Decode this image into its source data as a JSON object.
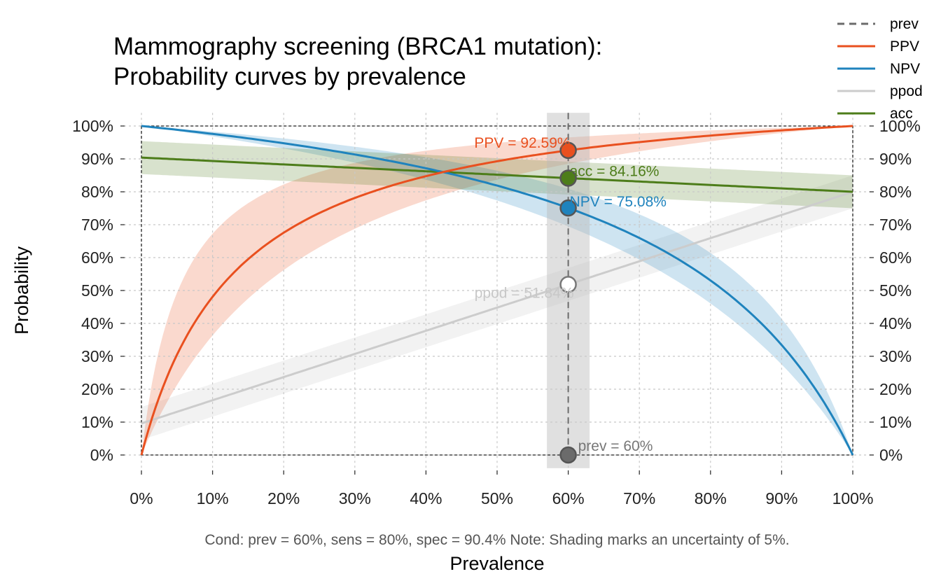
{
  "chart_data": {
    "type": "line",
    "title_line1": "Mammography screening (BRCA1 mutation):",
    "title_line2": "Probability curves by prevalence",
    "xlabel": "Prevalence",
    "ylabel": "Probability",
    "x_ticks": [
      "0%",
      "10%",
      "20%",
      "30%",
      "40%",
      "50%",
      "60%",
      "70%",
      "80%",
      "90%",
      "100%"
    ],
    "y_ticks": [
      "0%",
      "10%",
      "20%",
      "30%",
      "40%",
      "50%",
      "60%",
      "70%",
      "80%",
      "90%",
      "100%"
    ],
    "xlim": [
      0,
      100
    ],
    "ylim": [
      0,
      100
    ],
    "grid": true,
    "legend_position": "top-right",
    "note": "Cond:  prev = 60%, sens = 80%, spec = 90.4% Note:  Shading marks an uncertainty of 5%.",
    "conditions": {
      "prev": 60,
      "sens": 80,
      "spec": 90.4,
      "uncertainty": 5
    },
    "series": [
      {
        "key": "prev",
        "name": "prev",
        "color": "#6b6b6b",
        "style": "dashed"
      },
      {
        "key": "ppv",
        "name": "PPV",
        "color": "#e9501f",
        "style": "solid"
      },
      {
        "key": "npv",
        "name": "NPV",
        "color": "#1f83bd",
        "style": "solid"
      },
      {
        "key": "ppod",
        "name": "ppod",
        "color": "#cccccc",
        "style": "solid"
      },
      {
        "key": "acc",
        "name": "acc",
        "color": "#4d7d1a",
        "style": "solid"
      }
    ],
    "points": [
      {
        "key": "ppv",
        "x": 60,
        "y": 92.59,
        "label": "PPV = 92.59%",
        "color": "#e9501f",
        "text_color": "#e9501f"
      },
      {
        "key": "acc",
        "x": 60,
        "y": 84.16,
        "label": "acc = 84.16%",
        "color": "#4d7d1a",
        "text_color": "#4d7d1a"
      },
      {
        "key": "npv",
        "x": 60,
        "y": 75.08,
        "label": "NPV = 75.08%",
        "color": "#1f83bd",
        "text_color": "#1f83bd"
      },
      {
        "key": "ppod",
        "x": 60,
        "y": 51.84,
        "label": "ppod = 51.84%",
        "color": "#ffffff",
        "text_color": "#c8c8c8"
      },
      {
        "key": "prev",
        "x": 60,
        "y": 0,
        "label": "prev = 60%",
        "color": "#6b6b6b",
        "text_color": "#777777"
      }
    ]
  }
}
